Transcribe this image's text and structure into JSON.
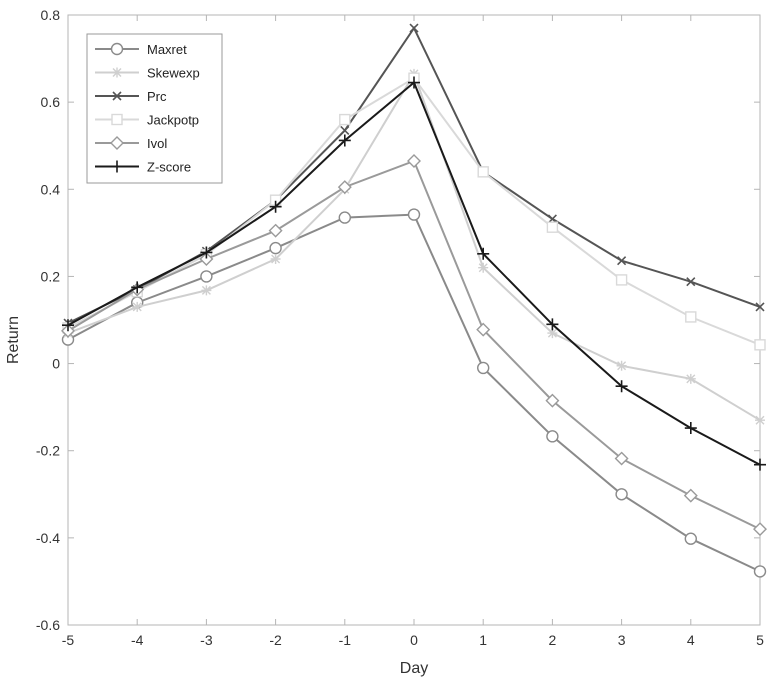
{
  "chart_data": {
    "type": "line",
    "xlabel": "Day",
    "ylabel": "Return",
    "xlim": [
      -5,
      5
    ],
    "ylim": [
      -0.6,
      0.8
    ],
    "x": [
      -5,
      -4,
      -3,
      -2,
      -1,
      0,
      1,
      2,
      3,
      4,
      5
    ],
    "xticks": [
      "-5",
      "-4",
      "-3",
      "-2",
      "-1",
      "0",
      "1",
      "2",
      "3",
      "4",
      "5"
    ],
    "yticks": [
      "-0.6",
      "-0.4",
      "-0.2",
      "0",
      "0.2",
      "0.4",
      "0.6",
      "0.8"
    ],
    "grid": false,
    "legend_position": "top-left",
    "series": [
      {
        "name": "Maxret",
        "values": [
          0.055,
          0.14,
          0.2,
          0.265,
          0.335,
          0.342,
          -0.01,
          -0.167,
          -0.3,
          -0.402,
          -0.477
        ],
        "color": "#8a8a8a",
        "marker": "circle"
      },
      {
        "name": "Skewexp",
        "values": [
          0.07,
          0.13,
          0.168,
          0.24,
          0.4,
          0.665,
          0.22,
          0.07,
          -0.005,
          -0.035,
          -0.13
        ],
        "color": "#cfcfcf",
        "marker": "asterisk"
      },
      {
        "name": "Prc",
        "values": [
          0.093,
          0.17,
          0.258,
          0.375,
          0.535,
          0.77,
          0.44,
          0.332,
          0.236,
          0.188,
          0.13
        ],
        "color": "#555555",
        "marker": "x"
      },
      {
        "name": "Jackpotp",
        "values": [
          0.082,
          0.165,
          0.25,
          0.375,
          0.56,
          0.655,
          0.44,
          0.313,
          0.192,
          0.107,
          0.043
        ],
        "color": "#d9d9d9",
        "marker": "square"
      },
      {
        "name": "Ivol",
        "values": [
          0.075,
          0.17,
          0.24,
          0.305,
          0.405,
          0.465,
          0.078,
          -0.085,
          -0.218,
          -0.303,
          -0.38
        ],
        "color": "#9a9a9a",
        "marker": "diamond"
      },
      {
        "name": "Z-score",
        "values": [
          0.088,
          0.175,
          0.255,
          0.36,
          0.512,
          0.645,
          0.252,
          0.09,
          -0.052,
          -0.148,
          -0.232
        ],
        "color": "#1a1a1a",
        "marker": "plus"
      }
    ]
  }
}
